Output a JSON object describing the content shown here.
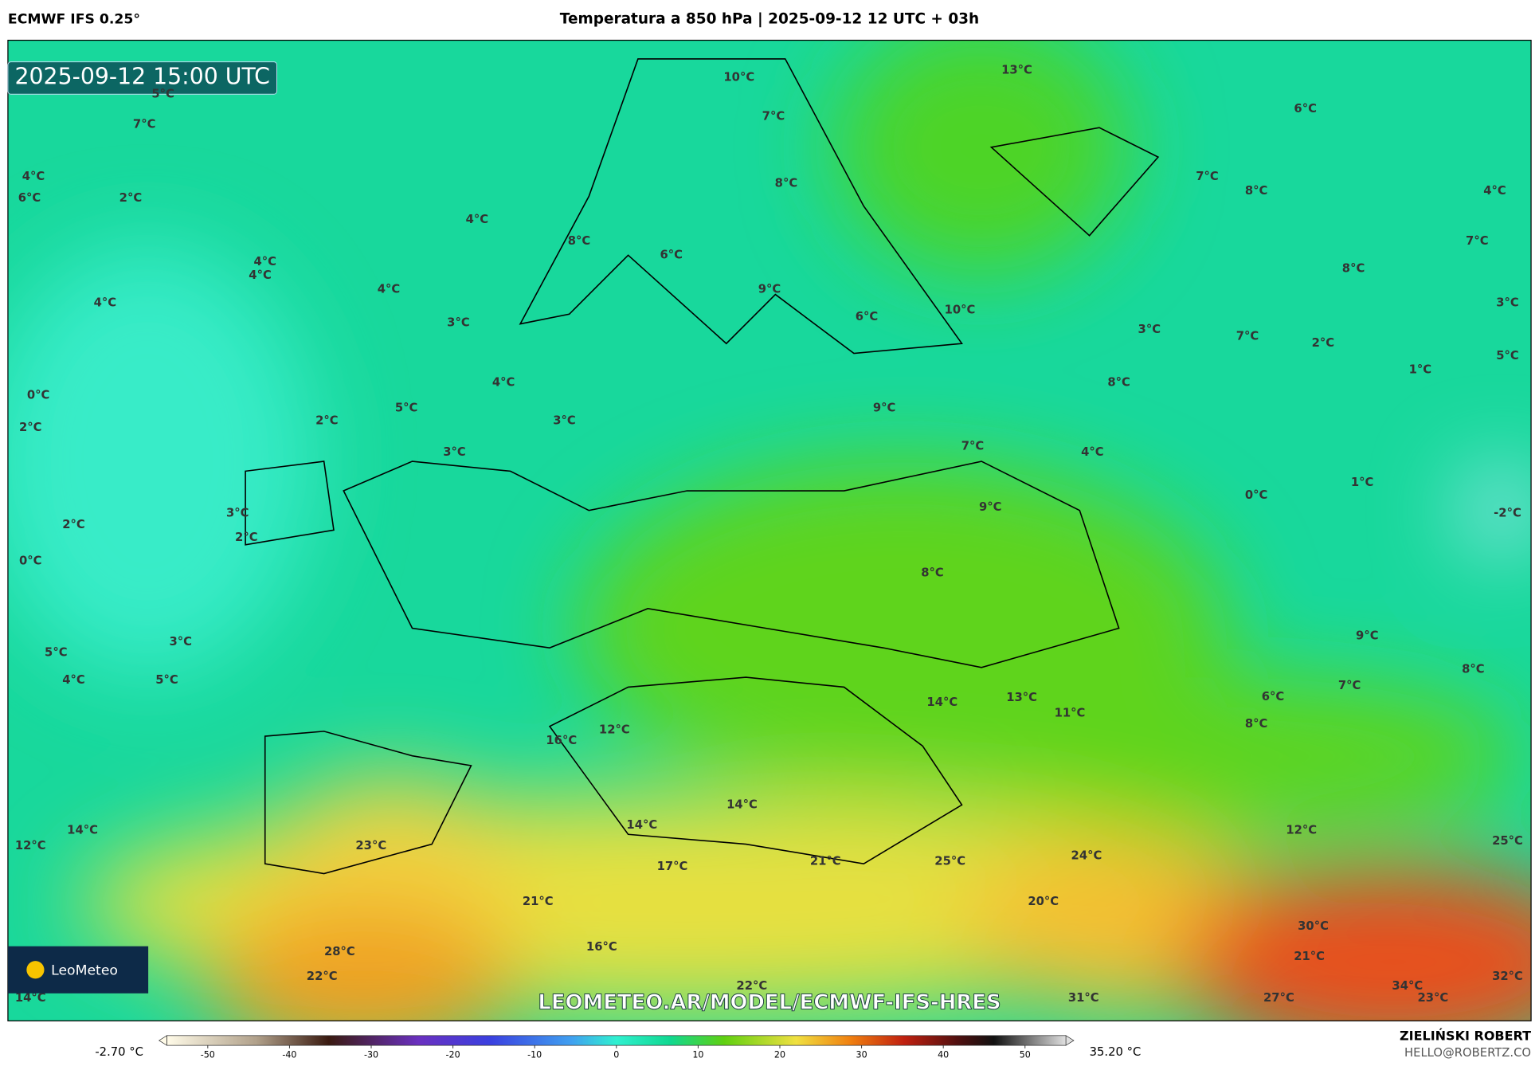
{
  "header": {
    "model": "ECMWF IFS 0.25°",
    "title": "Temperatura a 850 hPa | 2025-09-12 12 UTC + 03h"
  },
  "map": {
    "timestamp": "2025-09-12 15:00 UTC",
    "watermark": "LEOMETEO.AR/MODEL/ECMWF-IFS-HRES",
    "logo": "LeoMeteo",
    "labels": [
      "5°C",
      "7°C",
      "4°C",
      "6°C",
      "2°C",
      "4°C",
      "4°C",
      "4°C",
      "4°C",
      "4°C",
      "3°C",
      "4°C",
      "0°C",
      "2°C",
      "5°C",
      "2°C",
      "3°C",
      "3°C",
      "3°C",
      "2°C",
      "2°C",
      "0°C",
      "3°C",
      "5°C",
      "4°C",
      "5°C",
      "14°C",
      "12°C",
      "23°C",
      "28°C",
      "22°C",
      "14°C",
      "10°C",
      "7°C",
      "8°C",
      "8°C",
      "6°C",
      "9°C",
      "6°C",
      "10°C",
      "13°C",
      "6°C",
      "7°C",
      "8°C",
      "4°C",
      "7°C",
      "8°C",
      "3°C",
      "3°C",
      "7°C",
      "2°C",
      "5°C",
      "1°C",
      "8°C",
      "9°C",
      "7°C",
      "4°C",
      "1°C",
      "0°C",
      "-2°C",
      "9°C",
      "8°C",
      "9°C",
      "8°C",
      "7°C",
      "6°C",
      "8°C",
      "14°C",
      "13°C",
      "11°C",
      "16°C",
      "12°C",
      "14°C",
      "14°C",
      "17°C",
      "21°C",
      "25°C",
      "24°C",
      "12°C",
      "25°C",
      "20°C",
      "21°C",
      "16°C",
      "22°C",
      "30°C",
      "21°C",
      "31°C",
      "27°C",
      "34°C",
      "23°C",
      "32°C"
    ]
  },
  "colorbar": {
    "min_label": "-2.70 °C",
    "max_label": "35.20 °C",
    "lim": [
      -55,
      55
    ],
    "ticks": [
      -50,
      -40,
      -30,
      -20,
      -10,
      0,
      10,
      20,
      30,
      40,
      50
    ]
  },
  "footer": {
    "author": "ZIELIŃSKI ROBERT",
    "email": "HELLO@ROBERTZ.CO"
  }
}
